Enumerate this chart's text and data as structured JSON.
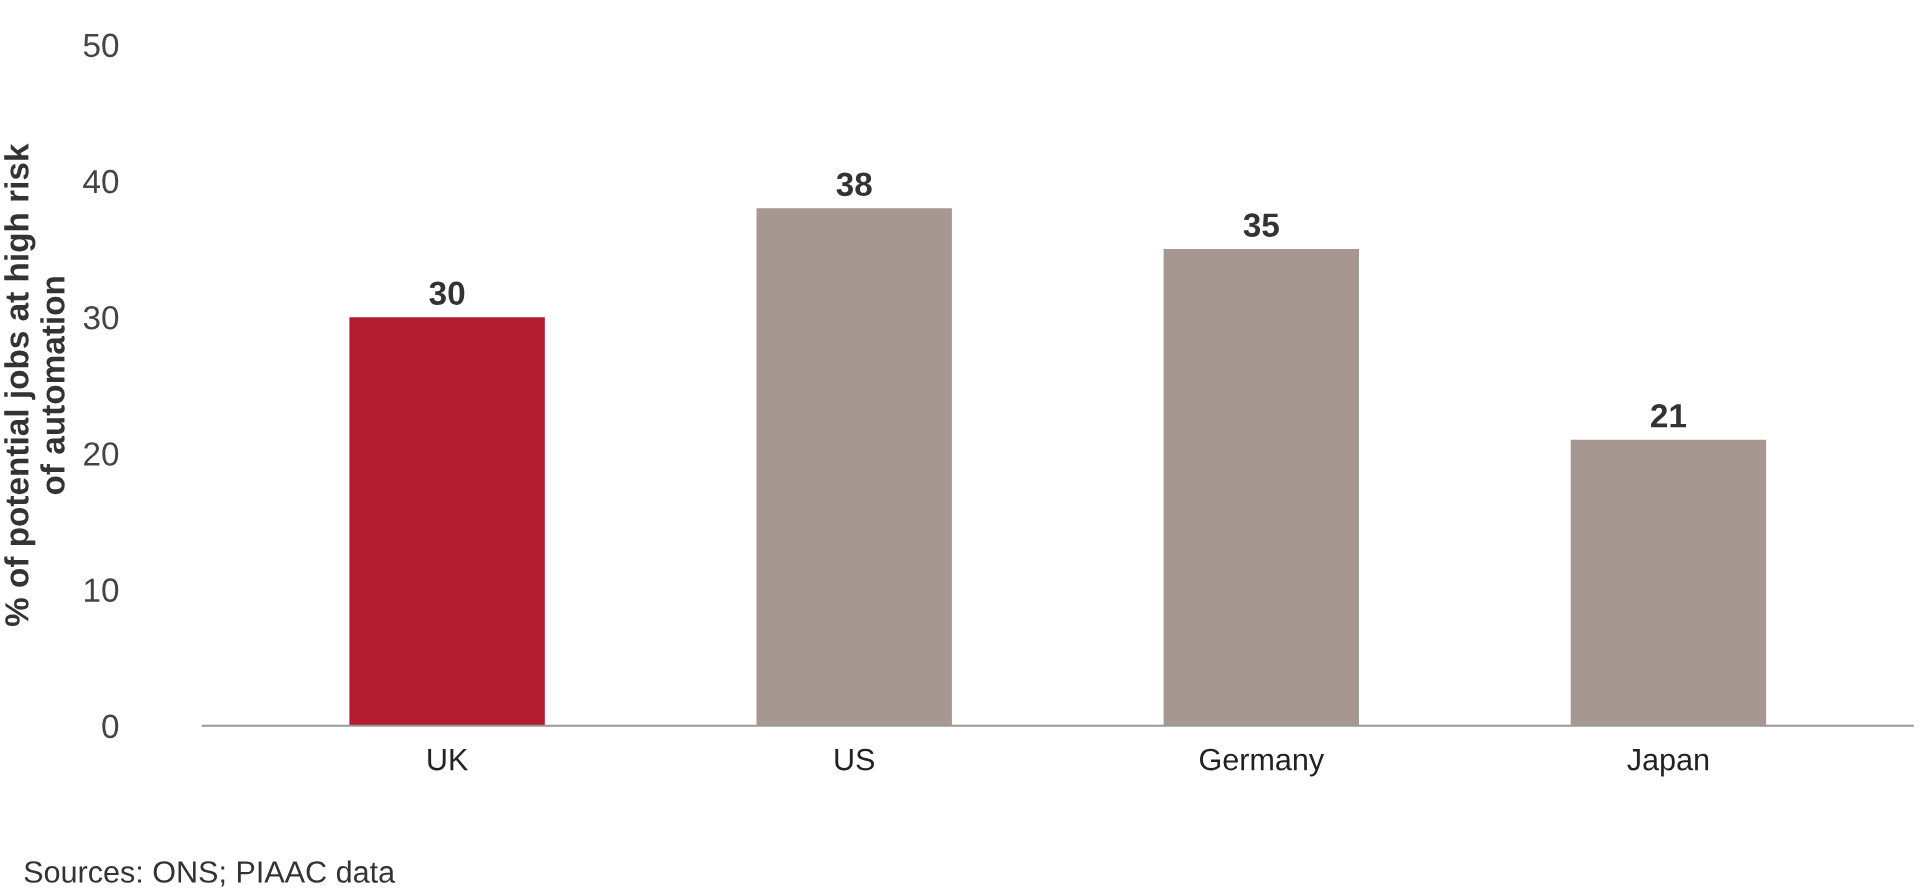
{
  "chart_data": {
    "type": "bar",
    "ylabel": "% of potential jobs at high risk\nof automation",
    "categories": [
      "UK",
      "US",
      "Germany",
      "Japan"
    ],
    "values": [
      30,
      38,
      35,
      21
    ],
    "colors": [
      "#b31b2f",
      "#a69890",
      "#a69890",
      "#a69890"
    ],
    "ylim": [
      0,
      50
    ],
    "yticks": [
      0,
      10,
      20,
      30,
      40,
      50
    ],
    "grid": false,
    "data_labels": true,
    "annotations": [
      "Sources: ONS; PIAAC data"
    ]
  }
}
